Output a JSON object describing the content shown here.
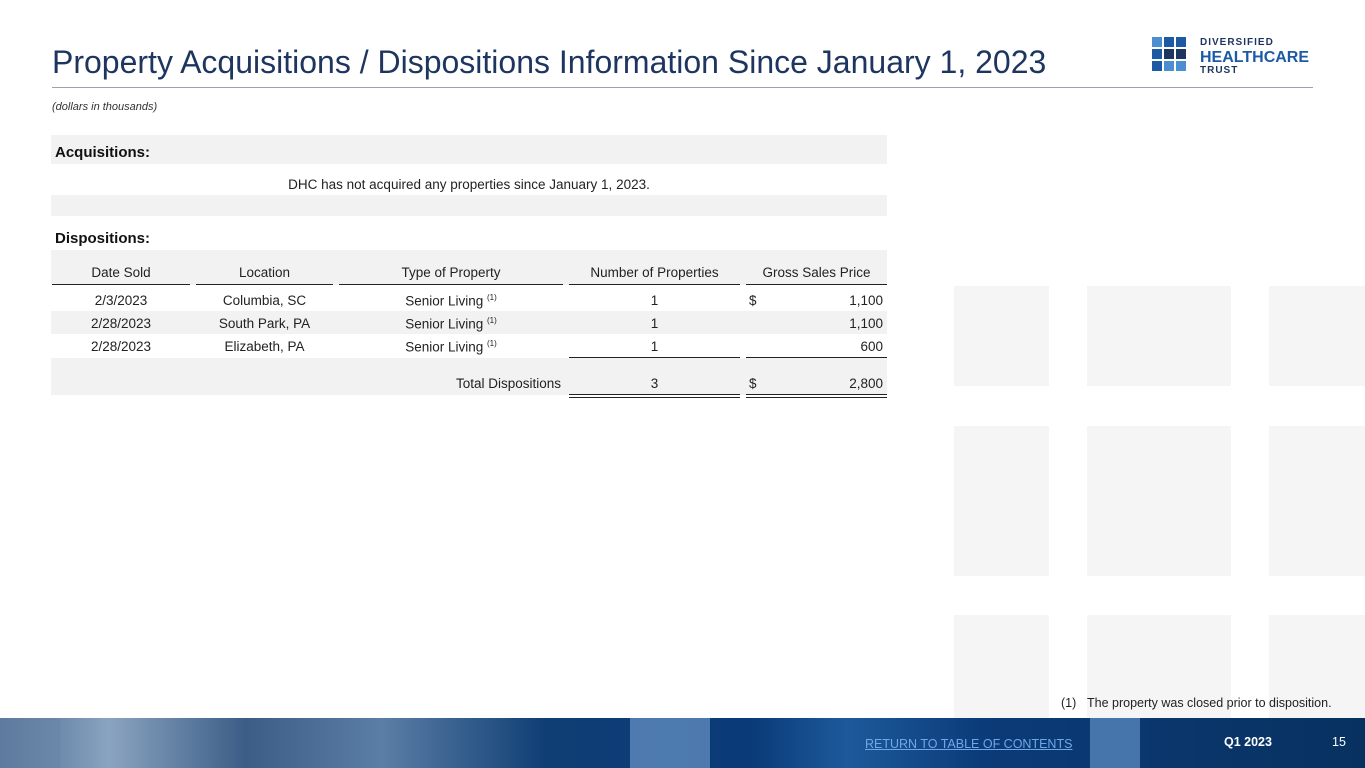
{
  "header": {
    "title": "Property Acquisitions / Dispositions Information Since January 1, 2023",
    "subtitle": "(dollars in thousands)",
    "logo": {
      "line1": "DIVERSIFIED",
      "line2": "HEALTHCARE",
      "line3": "TRUST"
    }
  },
  "acquisitions": {
    "heading": "Acquisitions:",
    "note": "DHC has not acquired any properties since January 1, 2023."
  },
  "dispositions": {
    "heading": "Dispositions:",
    "columns": [
      "Date Sold",
      "Location",
      "Type of Property",
      "Number of Properties",
      "Gross Sales Price"
    ],
    "rows": [
      {
        "date": "2/3/2023",
        "location": "Columbia, SC",
        "type": "Senior Living",
        "note": "(1)",
        "count": "1",
        "currency": "$",
        "price": "1,100"
      },
      {
        "date": "2/28/2023",
        "location": "South Park, PA",
        "type": "Senior Living",
        "note": "(1)",
        "count": "1",
        "price": "1,100"
      },
      {
        "date": "2/28/2023",
        "location": "Elizabeth, PA",
        "type": "Senior Living",
        "note": "(1)",
        "count": "1",
        "price": "600"
      }
    ],
    "total": {
      "label": "Total Dispositions",
      "count": "3",
      "currency": "$",
      "price": "2,800"
    }
  },
  "footnote": {
    "marker": "(1)",
    "text": "The property was closed prior to disposition."
  },
  "footer": {
    "link": "RETURN TO TABLE OF CONTENTS",
    "period": "Q1 2023",
    "page": "15"
  }
}
